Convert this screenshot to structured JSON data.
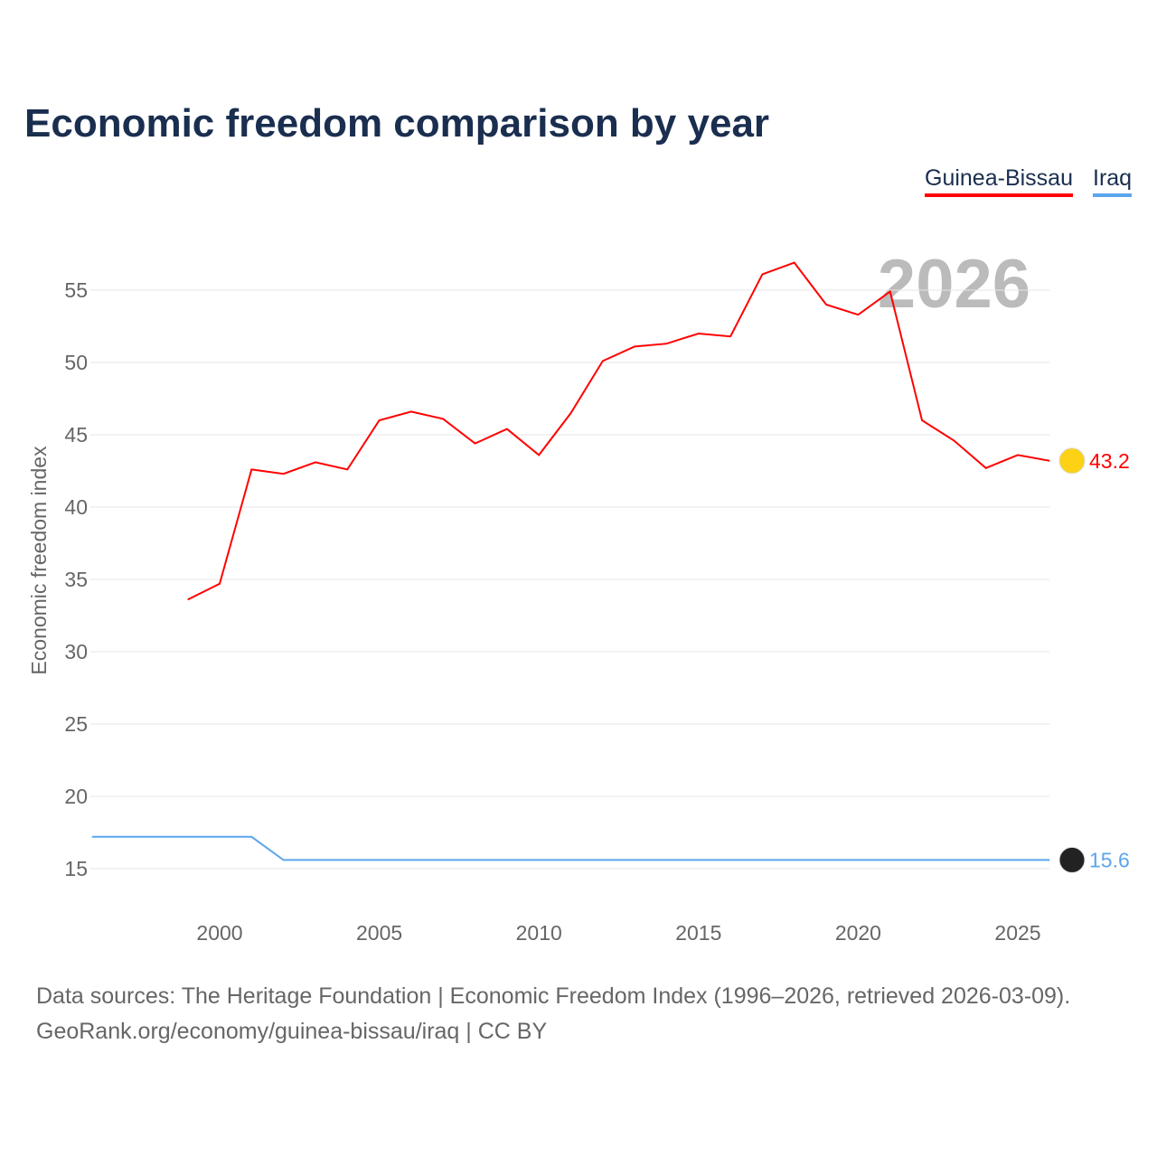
{
  "title": "Economic freedom comparison by year",
  "year_watermark": "2026",
  "legend": [
    "Guinea-Bissau",
    "Iraq"
  ],
  "sources": [
    "Data sources: The Heritage Foundation | Economic Freedom Index (1996–2026, retrieved 2026-03-09).",
    "GeoRank.org/economy/guinea-bissau/iraq | CC BY"
  ],
  "chart_data": {
    "type": "line",
    "title": "Economic freedom comparison by year",
    "xlabel": "",
    "ylabel": "Economic freedom index",
    "xlim": [
      1996,
      2026
    ],
    "ylim": [
      12.5,
      58
    ],
    "yticks": [
      15,
      20,
      25,
      30,
      35,
      40,
      45,
      50,
      55
    ],
    "xticks": [
      2000,
      2005,
      2010,
      2015,
      2020,
      2025
    ],
    "series": [
      {
        "name": "Guinea-Bissau",
        "color": "#ff0000",
        "end_label": "43.2",
        "x": [
          1999,
          2000,
          2001,
          2002,
          2003,
          2004,
          2005,
          2006,
          2007,
          2008,
          2009,
          2010,
          2011,
          2012,
          2013,
          2014,
          2015,
          2016,
          2017,
          2018,
          2019,
          2020,
          2021,
          2022,
          2023,
          2024,
          2025,
          2026
        ],
        "y": [
          33.6,
          34.7,
          42.6,
          42.3,
          43.1,
          42.6,
          46.0,
          46.6,
          46.1,
          44.4,
          45.4,
          43.6,
          46.5,
          50.1,
          51.1,
          51.3,
          52.0,
          51.8,
          56.1,
          56.9,
          54.0,
          53.3,
          54.9,
          46.0,
          44.6,
          42.7,
          43.6,
          43.2
        ]
      },
      {
        "name": "Iraq",
        "color": "#5aa5ee",
        "end_label": "15.6",
        "x": [
          1996,
          1997,
          1998,
          1999,
          2000,
          2001,
          2002,
          2003,
          2026
        ],
        "y": [
          17.2,
          17.2,
          17.2,
          17.2,
          17.2,
          17.2,
          15.6,
          15.6,
          15.6
        ]
      }
    ]
  }
}
